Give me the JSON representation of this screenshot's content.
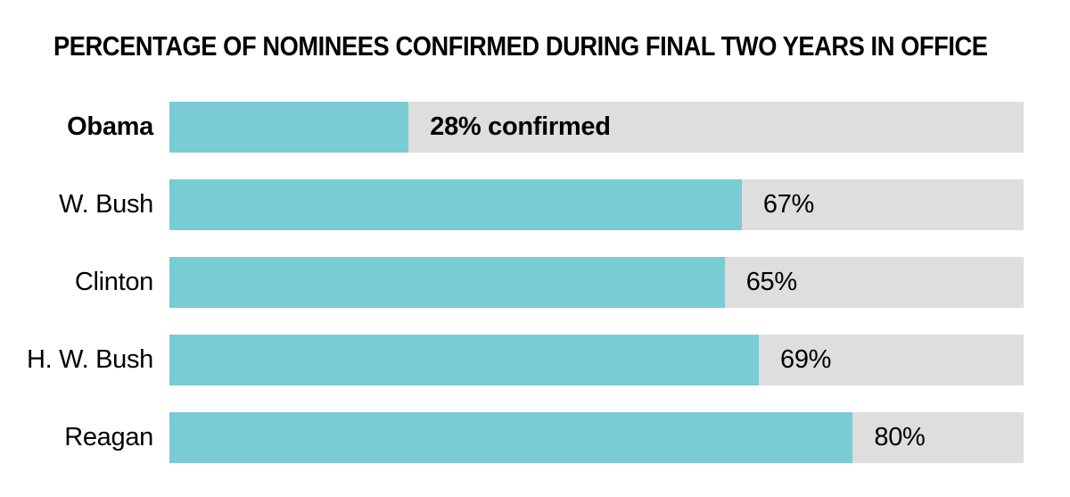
{
  "title": "PERCENTAGE OF NOMINEES CONFIRMED DURING FINAL TWO YEARS IN OFFICE",
  "colors": {
    "bar_fill": "#79CBD4",
    "bar_track": "#DEDEDE",
    "text": "#000000",
    "background": "#FFFFFF"
  },
  "chart_data": {
    "type": "bar",
    "orientation": "horizontal",
    "title": "PERCENTAGE OF NOMINEES CONFIRMED DURING FINAL TWO YEARS IN OFFICE",
    "categories": [
      "Obama",
      "W. Bush",
      "Clinton",
      "H. W. Bush",
      "Reagan"
    ],
    "values": [
      28,
      67,
      65,
      69,
      80
    ],
    "value_labels": [
      "28% confirmed",
      "67%",
      "65%",
      "69%",
      "80%"
    ],
    "xlim": [
      0,
      100
    ],
    "grid": false,
    "legend": false,
    "axis_ticks": false,
    "highlight_category": "Obama"
  },
  "rows": [
    {
      "label": "Obama",
      "value": 28,
      "value_label": "28% confirmed",
      "label_weight": "700",
      "value_weight": "700"
    },
    {
      "label": "W. Bush",
      "value": 67,
      "value_label": "67%",
      "label_weight": "400",
      "value_weight": "400"
    },
    {
      "label": "Clinton",
      "value": 65,
      "value_label": "65%",
      "label_weight": "400",
      "value_weight": "400"
    },
    {
      "label": "H. W. Bush",
      "value": 69,
      "value_label": "69%",
      "label_weight": "400",
      "value_weight": "400"
    },
    {
      "label": "Reagan",
      "value": 80,
      "value_label": "80%",
      "label_weight": "400",
      "value_weight": "400"
    }
  ]
}
